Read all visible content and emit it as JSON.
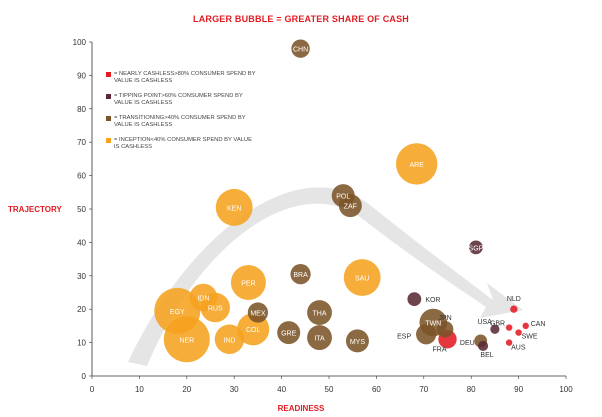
{
  "chart_data": {
    "type": "bubble",
    "title": "LARGER BUBBLE = GREATER SHARE OF CASH",
    "xlabel": "READINESS",
    "ylabel": "TRAJECTORY",
    "xlim": [
      0,
      100
    ],
    "ylim": [
      0,
      100
    ],
    "xticks": [
      0,
      10,
      20,
      30,
      40,
      50,
      60,
      70,
      80,
      90,
      100
    ],
    "yticks": [
      0,
      10,
      20,
      30,
      40,
      50,
      60,
      70,
      80,
      90,
      100
    ],
    "grid": false,
    "legend": [
      {
        "category": "nearly_cashless",
        "text": "= NEARLY CASHLESS>80% CONSUMER SPEND BY VALUE IS CASHLESS",
        "color": "#e31b23"
      },
      {
        "category": "tipping_point",
        "text": "= TIPPING POINT>60% CONSUMER SPEND BY VALUE IS CASHLESS",
        "color": "#5a2a35"
      },
      {
        "category": "transitioning",
        "text": "= TRANSITIONING>40% CONSUMER SPEND BY VALUE IS CASHLESS",
        "color": "#7b5428"
      },
      {
        "category": "inception",
        "text": "= INCEPTION<40% CONSUMER SPEND BY VALUE IS CASHLESS",
        "color": "#f5a21e"
      }
    ],
    "colors": {
      "nearly_cashless": "#e31b23",
      "tipping_point": "#5a2a35",
      "transitioning": "#7b5428",
      "inception": "#f5a21e",
      "arrow": "#dcdcdc",
      "axis": "#333333",
      "label_on_dark": "#ffffff",
      "label_on_light": "#333333"
    },
    "bubbles": [
      {
        "label": "CHN",
        "x": 44,
        "y": 98,
        "size": 2,
        "category": "transitioning"
      },
      {
        "label": "ARE",
        "x": 68.5,
        "y": 63.5,
        "size": 4.5,
        "category": "inception"
      },
      {
        "label": "KEN",
        "x": 30,
        "y": 50.5,
        "size": 4,
        "category": "inception"
      },
      {
        "label": "POL",
        "x": 53,
        "y": 54,
        "size": 2.5,
        "category": "transitioning"
      },
      {
        "label": "ZAF",
        "x": 54.5,
        "y": 51,
        "size": 2.5,
        "category": "transitioning"
      },
      {
        "label": "SGP",
        "x": 81,
        "y": 38.5,
        "size": 1.5,
        "category": "tipping_point"
      },
      {
        "label": "BRA",
        "x": 44,
        "y": 30.5,
        "size": 2.2,
        "category": "transitioning"
      },
      {
        "label": "SAU",
        "x": 57,
        "y": 29.5,
        "size": 4,
        "category": "inception"
      },
      {
        "label": "PER",
        "x": 33,
        "y": 28,
        "size": 3.8,
        "category": "inception"
      },
      {
        "label": "IDN",
        "x": 23.5,
        "y": 23.5,
        "size": 3,
        "category": "inception"
      },
      {
        "label": "KOR",
        "x": 68,
        "y": 23,
        "size": 1.5,
        "category": "tipping_point"
      },
      {
        "label": "EGY",
        "x": 18,
        "y": 19.5,
        "size": 5,
        "category": "inception"
      },
      {
        "label": "RUS",
        "x": 26,
        "y": 20.5,
        "size": 3.2,
        "category": "inception"
      },
      {
        "label": "MEX",
        "x": 35,
        "y": 19,
        "size": 2.2,
        "category": "transitioning"
      },
      {
        "label": "THA",
        "x": 48,
        "y": 19,
        "size": 2.7,
        "category": "transitioning"
      },
      {
        "label": "NLD",
        "x": 89,
        "y": 20,
        "size": 0.8,
        "category": "nearly_cashless"
      },
      {
        "label": "TWN",
        "x": 72,
        "y": 16,
        "size": 3,
        "category": "transitioning"
      },
      {
        "label": "CAN",
        "x": 91.5,
        "y": 15,
        "size": 0.7,
        "category": "nearly_cashless"
      },
      {
        "label": "USA",
        "x": 85,
        "y": 14,
        "size": 1,
        "category": "tipping_point"
      },
      {
        "label": "JPN",
        "x": 74.5,
        "y": 14,
        "size": 1.8,
        "category": "transitioning"
      },
      {
        "label": "GBR",
        "x": 88,
        "y": 14.5,
        "size": 0.7,
        "category": "nearly_cashless"
      },
      {
        "label": "COL",
        "x": 34,
        "y": 14,
        "size": 3.5,
        "category": "inception"
      },
      {
        "label": "GRE",
        "x": 41.5,
        "y": 13,
        "size": 2.5,
        "category": "transitioning"
      },
      {
        "label": "ESP",
        "x": 70.5,
        "y": 12.5,
        "size": 2.2,
        "category": "transitioning"
      },
      {
        "label": "SWE",
        "x": 90,
        "y": 13,
        "size": 0.7,
        "category": "nearly_cashless"
      },
      {
        "label": "ITA",
        "x": 48,
        "y": 11.5,
        "size": 2.7,
        "category": "transitioning"
      },
      {
        "label": "FRA",
        "x": 75,
        "y": 11,
        "size": 2,
        "category": "nearly_cashless"
      },
      {
        "label": "NER",
        "x": 20,
        "y": 11,
        "size": 5,
        "category": "inception"
      },
      {
        "label": "IND",
        "x": 29,
        "y": 11,
        "size": 3.2,
        "category": "inception"
      },
      {
        "label": "MYS",
        "x": 56,
        "y": 10.5,
        "size": 2.5,
        "category": "transitioning"
      },
      {
        "label": "DEU",
        "x": 82,
        "y": 10.5,
        "size": 1.4,
        "category": "transitioning"
      },
      {
        "label": "AUS",
        "x": 88,
        "y": 10,
        "size": 0.7,
        "category": "nearly_cashless"
      },
      {
        "label": "BEL",
        "x": 82.5,
        "y": 9,
        "size": 1.1,
        "category": "tipping_point"
      }
    ]
  }
}
